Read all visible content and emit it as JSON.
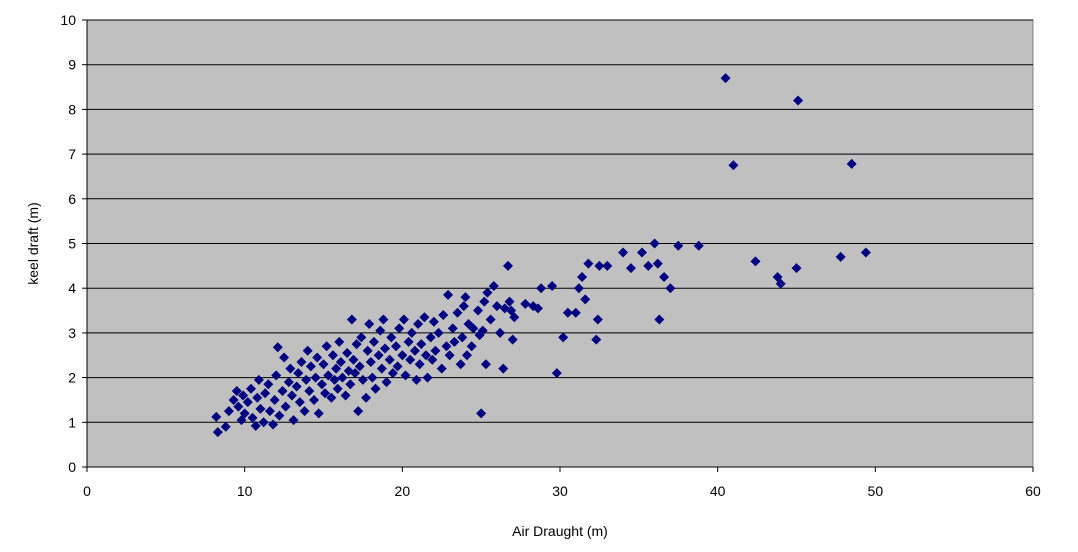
{
  "chart_data": {
    "type": "scatter",
    "title": "",
    "xlabel": "Air Draught (m)",
    "ylabel": "keel draft (m)",
    "xlim": [
      0,
      60
    ],
    "ylim": [
      0,
      10
    ],
    "x_ticks": [
      0,
      10,
      20,
      30,
      40,
      50,
      60
    ],
    "y_ticks": [
      0,
      1,
      2,
      3,
      4,
      5,
      6,
      7,
      8,
      9,
      10
    ],
    "grid": "horizontal",
    "legend": "none",
    "marker": "diamond",
    "colors": {
      "plot_background": "#c0c0c0",
      "marker": "#000080",
      "gridline": "#000000"
    },
    "series": [
      {
        "points": [
          [
            8.3,
            0.78
          ],
          [
            8.2,
            1.12
          ],
          [
            8.8,
            0.9
          ],
          [
            9.0,
            1.25
          ],
          [
            9.3,
            1.5
          ],
          [
            9.5,
            1.7
          ],
          [
            9.6,
            1.35
          ],
          [
            9.8,
            1.05
          ],
          [
            9.9,
            1.6
          ],
          [
            10.0,
            1.2
          ],
          [
            10.2,
            1.45
          ],
          [
            10.4,
            1.75
          ],
          [
            10.5,
            1.1
          ],
          [
            10.7,
            0.92
          ],
          [
            10.8,
            1.55
          ],
          [
            10.9,
            1.95
          ],
          [
            11.0,
            1.3
          ],
          [
            11.2,
            1.0
          ],
          [
            11.3,
            1.65
          ],
          [
            11.5,
            1.85
          ],
          [
            11.6,
            1.25
          ],
          [
            11.8,
            0.95
          ],
          [
            11.9,
            1.5
          ],
          [
            12.0,
            2.05
          ],
          [
            12.1,
            2.68
          ],
          [
            12.2,
            1.15
          ],
          [
            12.4,
            1.7
          ],
          [
            12.5,
            2.45
          ],
          [
            12.6,
            1.35
          ],
          [
            12.8,
            1.9
          ],
          [
            12.9,
            2.2
          ],
          [
            13.0,
            1.6
          ],
          [
            13.1,
            1.05
          ],
          [
            13.3,
            1.8
          ],
          [
            13.4,
            2.1
          ],
          [
            13.5,
            1.45
          ],
          [
            13.6,
            2.35
          ],
          [
            13.8,
            1.25
          ],
          [
            13.9,
            1.95
          ],
          [
            14.0,
            2.6
          ],
          [
            14.1,
            1.7
          ],
          [
            14.2,
            2.25
          ],
          [
            14.4,
            1.5
          ],
          [
            14.5,
            2.0
          ],
          [
            14.6,
            2.45
          ],
          [
            14.7,
            1.2
          ],
          [
            14.9,
            1.85
          ],
          [
            15.0,
            2.3
          ],
          [
            15.1,
            1.65
          ],
          [
            15.2,
            2.7
          ],
          [
            15.3,
            2.05
          ],
          [
            15.5,
            1.55
          ],
          [
            15.6,
            2.5
          ],
          [
            15.7,
            1.95
          ],
          [
            15.8,
            2.2
          ],
          [
            15.9,
            1.75
          ],
          [
            16.0,
            2.8
          ],
          [
            16.1,
            2.35
          ],
          [
            16.2,
            2.0
          ],
          [
            16.4,
            1.6
          ],
          [
            16.5,
            2.55
          ],
          [
            16.6,
            2.15
          ],
          [
            16.7,
            1.85
          ],
          [
            16.8,
            3.3
          ],
          [
            16.9,
            2.4
          ],
          [
            17.0,
            2.1
          ],
          [
            17.1,
            2.75
          ],
          [
            17.2,
            1.25
          ],
          [
            17.3,
            2.25
          ],
          [
            17.4,
            2.9
          ],
          [
            17.5,
            1.95
          ],
          [
            17.7,
            1.55
          ],
          [
            17.8,
            2.6
          ],
          [
            17.9,
            3.2
          ],
          [
            18.0,
            2.35
          ],
          [
            18.1,
            2.0
          ],
          [
            18.2,
            2.8
          ],
          [
            18.3,
            1.75
          ],
          [
            18.5,
            2.5
          ],
          [
            18.6,
            3.05
          ],
          [
            18.7,
            2.2
          ],
          [
            18.8,
            3.3
          ],
          [
            18.9,
            2.65
          ],
          [
            19.0,
            1.9
          ],
          [
            19.2,
            2.4
          ],
          [
            19.3,
            2.9
          ],
          [
            19.4,
            2.1
          ],
          [
            19.6,
            2.7
          ],
          [
            19.7,
            2.25
          ],
          [
            19.8,
            3.1
          ],
          [
            20.0,
            2.5
          ],
          [
            20.1,
            3.3
          ],
          [
            20.2,
            2.05
          ],
          [
            20.4,
            2.8
          ],
          [
            20.5,
            2.4
          ],
          [
            20.6,
            3.0
          ],
          [
            20.8,
            2.6
          ],
          [
            20.9,
            1.95
          ],
          [
            21.0,
            3.2
          ],
          [
            21.1,
            2.3
          ],
          [
            21.2,
            2.75
          ],
          [
            21.4,
            3.35
          ],
          [
            21.5,
            2.5
          ],
          [
            21.6,
            2.0
          ],
          [
            21.8,
            2.9
          ],
          [
            21.9,
            2.4
          ],
          [
            22.0,
            3.25
          ],
          [
            22.1,
            2.6
          ],
          [
            22.3,
            3.0
          ],
          [
            22.5,
            2.2
          ],
          [
            22.6,
            3.4
          ],
          [
            22.8,
            2.7
          ],
          [
            22.9,
            3.85
          ],
          [
            23.0,
            2.5
          ],
          [
            23.2,
            3.1
          ],
          [
            23.3,
            2.8
          ],
          [
            23.5,
            3.45
          ],
          [
            23.7,
            2.3
          ],
          [
            23.8,
            2.9
          ],
          [
            23.9,
            3.6
          ],
          [
            24.0,
            3.8
          ],
          [
            24.1,
            2.5
          ],
          [
            24.2,
            3.2
          ],
          [
            24.4,
            2.7
          ],
          [
            24.5,
            3.1
          ],
          [
            24.8,
            3.5
          ],
          [
            24.9,
            2.95
          ],
          [
            25.0,
            1.2
          ],
          [
            25.1,
            3.05
          ],
          [
            25.2,
            3.7
          ],
          [
            25.3,
            2.3
          ],
          [
            25.4,
            3.9
          ],
          [
            25.6,
            3.3
          ],
          [
            25.8,
            4.05
          ],
          [
            26.0,
            3.6
          ],
          [
            26.2,
            3.0
          ],
          [
            26.4,
            2.2
          ],
          [
            26.5,
            3.55
          ],
          [
            26.7,
            4.5
          ],
          [
            26.8,
            3.7
          ],
          [
            26.9,
            3.5
          ],
          [
            27.0,
            2.85
          ],
          [
            27.1,
            3.35
          ],
          [
            27.8,
            3.65
          ],
          [
            28.3,
            3.6
          ],
          [
            28.6,
            3.55
          ],
          [
            28.8,
            4.0
          ],
          [
            29.5,
            4.05
          ],
          [
            29.8,
            2.1
          ],
          [
            30.2,
            2.9
          ],
          [
            30.5,
            3.45
          ],
          [
            31.0,
            3.45
          ],
          [
            31.2,
            4.0
          ],
          [
            31.4,
            4.25
          ],
          [
            31.6,
            3.75
          ],
          [
            31.8,
            4.55
          ],
          [
            32.3,
            2.85
          ],
          [
            32.4,
            3.3
          ],
          [
            32.5,
            4.5
          ],
          [
            33.0,
            4.5
          ],
          [
            34.0,
            4.8
          ],
          [
            34.5,
            4.45
          ],
          [
            35.2,
            4.8
          ],
          [
            35.6,
            4.5
          ],
          [
            36.0,
            5.0
          ],
          [
            36.2,
            4.55
          ],
          [
            36.3,
            3.3
          ],
          [
            36.6,
            4.25
          ],
          [
            37.0,
            4.0
          ],
          [
            37.5,
            4.95
          ],
          [
            38.8,
            4.95
          ],
          [
            40.5,
            8.7
          ],
          [
            41.0,
            6.75
          ],
          [
            42.4,
            4.6
          ],
          [
            43.8,
            4.25
          ],
          [
            44.0,
            4.1
          ],
          [
            45.0,
            4.45
          ],
          [
            45.1,
            8.2
          ],
          [
            47.8,
            4.7
          ],
          [
            48.5,
            6.78
          ],
          [
            49.4,
            4.8
          ]
        ]
      }
    ]
  }
}
